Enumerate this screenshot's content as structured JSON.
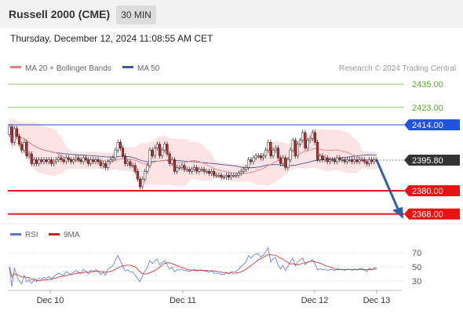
{
  "header": {
    "title": "Russell 2000 (CME)",
    "interval": "30 MIN"
  },
  "datetime": "Thursday, December 12, 2024 11:08:55 AM CET",
  "legend": {
    "ma20": "MA 20 + Bollinger Bands",
    "ma50": "MA 50"
  },
  "watermark": "Research © 2024 Trading Central",
  "colors": {
    "ma20": "#f08080",
    "ma50": "#3a5a9a",
    "support": "#ee1111",
    "resistance_main": "#2255dd",
    "resistance_far": "#66bb33",
    "up_candle": "#ffffff",
    "down_candle": "#cc2222",
    "rsi": "#5577dd",
    "rsi_ma": "#cc2222"
  },
  "chart_data": [
    {
      "type": "candlestick",
      "ylim": [
        2360,
        2440
      ],
      "x_labels": [
        "Dec 10",
        "Dec 11",
        "Dec 12",
        "Dec 13"
      ],
      "levels": [
        {
          "value": 2435.0,
          "label": "2435.00",
          "kind": "resistance-far"
        },
        {
          "value": 2423.0,
          "label": "2423.00",
          "kind": "resistance-far"
        },
        {
          "value": 2414.0,
          "label": "2414.00",
          "kind": "resistance"
        },
        {
          "value": 2395.8,
          "label": "2395.80",
          "kind": "last-price"
        },
        {
          "value": 2380.0,
          "label": "2380.00",
          "kind": "support"
        },
        {
          "value": 2368.0,
          "label": "2368.00",
          "kind": "support"
        }
      ],
      "close": [
        2413,
        2405,
        2412,
        2408,
        2404,
        2401,
        2405,
        2398,
        2399,
        2394,
        2396,
        2394,
        2396,
        2395,
        2396,
        2395,
        2396,
        2394,
        2395,
        2396,
        2397,
        2396,
        2395,
        2397,
        2396,
        2395,
        2396,
        2397,
        2396,
        2395,
        2397,
        2396,
        2394,
        2396,
        2395,
        2396,
        2395,
        2393,
        2394,
        2392,
        2395,
        2396,
        2397,
        2401,
        2405,
        2402,
        2398,
        2394,
        2395,
        2393,
        2393,
        2390,
        2386,
        2382,
        2386,
        2390,
        2393,
        2401,
        2398,
        2402,
        2404,
        2398,
        2401,
        2404,
        2399,
        2394,
        2396,
        2390,
        2392,
        2392,
        2393,
        2391,
        2391,
        2390,
        2391,
        2392,
        2390,
        2391,
        2391,
        2390,
        2390,
        2389,
        2390,
        2388,
        2388,
        2388,
        2387,
        2387,
        2388,
        2387,
        2388,
        2388,
        2388,
        2389,
        2390,
        2391,
        2392,
        2396,
        2395,
        2397,
        2398,
        2398,
        2397,
        2398,
        2401,
        2405,
        2398,
        2401,
        2402,
        2397,
        2394,
        2397,
        2392,
        2396,
        2401,
        2406,
        2398,
        2404,
        2406,
        2410,
        2402,
        2406,
        2407,
        2410,
        2405,
        2396,
        2398,
        2396,
        2397,
        2395,
        2396,
        2396,
        2395,
        2397,
        2396,
        2396,
        2395,
        2396,
        2396,
        2395,
        2396,
        2395,
        2396,
        2396,
        2395,
        2394,
        2396,
        2395,
        2396,
        2395.8
      ],
      "rsi_levels": [
        70,
        50,
        30
      ],
      "rsi_legend": [
        "RSI",
        "9MA"
      ],
      "projection": {
        "from": 2395.8,
        "to": 2368.0
      }
    }
  ]
}
